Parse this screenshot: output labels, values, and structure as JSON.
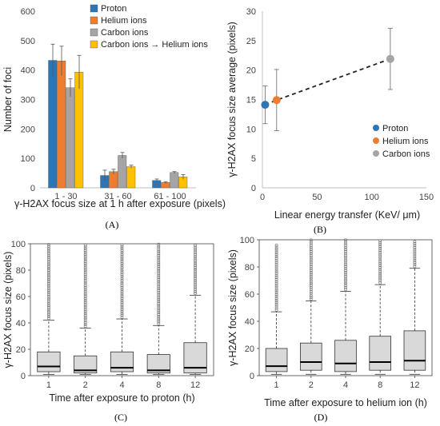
{
  "chart_data": [
    {
      "panel": "(A)",
      "type": "bar",
      "categories": [
        "1 - 30",
        "31 - 60",
        "61 - 100"
      ],
      "series": [
        {
          "name": "Proton",
          "color": "#2e75b6",
          "values": [
            433,
            42,
            25
          ],
          "errors": [
            55,
            18,
            5
          ]
        },
        {
          "name": "Helium ions",
          "color": "#ed7d31",
          "values": [
            431,
            55,
            18
          ],
          "errors": [
            50,
            8,
            3
          ]
        },
        {
          "name": "Carbon ions",
          "color": "#a5a5a5",
          "values": [
            340,
            110,
            52
          ],
          "errors": [
            30,
            10,
            3
          ]
        },
        {
          "name": "Carbon ions → Helium ions",
          "color": "#ffc000",
          "values": [
            393,
            72,
            37
          ],
          "errors": [
            57,
            5,
            8
          ]
        }
      ],
      "xlabel": "γ-H2AX focus size at 1 h after exposure (pixels)",
      "ylabel": "Number of foci",
      "yticks": [
        "0",
        "100",
        "200",
        "300",
        "400",
        "500",
        "600"
      ],
      "ylim": [
        0,
        600
      ],
      "legend": "top-right"
    },
    {
      "panel": "(B)",
      "type": "scatter",
      "series": [
        {
          "name": "Proton",
          "color": "#2e75b6",
          "x": 2.5,
          "y": 14.1,
          "err": 3.2
        },
        {
          "name": "Helium ions",
          "color": "#ed7d31",
          "x": 13,
          "y": 14.9,
          "err": 5.2
        },
        {
          "name": "Carbon ions",
          "color": "#a5a5a5",
          "x": 117,
          "y": 21.9,
          "err": 5.2
        }
      ],
      "trendline": "dashed",
      "xlabel": "Linear energy transfer (KeV/ μm)",
      "ylabel": "γ-H2AX focus size average (pixels)",
      "xticks": [
        "0",
        "50",
        "100",
        "150"
      ],
      "yticks": [
        "0",
        "5",
        "10",
        "15",
        "20",
        "25",
        "30"
      ],
      "xlim": [
        0,
        150
      ],
      "ylim": [
        0,
        30
      ],
      "legend": "bottom-right"
    },
    {
      "panel": "(C)",
      "type": "boxplot",
      "categories": [
        "1",
        "2",
        "4",
        "8",
        "12"
      ],
      "boxes": [
        {
          "min": 1,
          "q1": 3,
          "median": 7,
          "q3": 18,
          "whisker": 42,
          "outlier_max": 100
        },
        {
          "min": 1,
          "q1": 2,
          "median": 4,
          "q3": 15,
          "whisker": 36,
          "outlier_max": 100
        },
        {
          "min": 1,
          "q1": 3,
          "median": 6,
          "q3": 18,
          "whisker": 43,
          "outlier_max": 100
        },
        {
          "min": 1,
          "q1": 2,
          "median": 4,
          "q3": 16,
          "whisker": 38,
          "outlier_max": 100
        },
        {
          "min": 1,
          "q1": 2,
          "median": 6,
          "q3": 25,
          "whisker": 61,
          "outlier_max": 100
        }
      ],
      "xlabel": "Time after exposure to proton (h)",
      "ylabel": "γ-H2AX focus size (pixels)",
      "yticks": [
        "0",
        "20",
        "40",
        "60",
        "80",
        "100"
      ],
      "ylim": [
        0,
        100
      ]
    },
    {
      "panel": "(D)",
      "type": "boxplot",
      "categories": [
        "1",
        "2",
        "4",
        "8",
        "12"
      ],
      "boxes": [
        {
          "min": 1,
          "q1": 3,
          "median": 7,
          "q3": 20,
          "whisker": 47,
          "outlier_max": 97
        },
        {
          "min": 1,
          "q1": 4,
          "median": 10,
          "q3": 24,
          "whisker": 55,
          "outlier_max": 100
        },
        {
          "min": 1,
          "q1": 3,
          "median": 9,
          "q3": 26,
          "whisker": 62,
          "outlier_max": 100
        },
        {
          "min": 1,
          "q1": 4,
          "median": 10,
          "q3": 29,
          "whisker": 67,
          "outlier_max": 100
        },
        {
          "min": 1,
          "q1": 4,
          "median": 11,
          "q3": 33,
          "whisker": 79,
          "outlier_max": 100
        }
      ],
      "xlabel": "Time after exposure to helium ion (h)",
      "ylabel": "γ-H2AX focus size (pixels)",
      "yticks": [
        "0",
        "20",
        "40",
        "60",
        "80",
        "100"
      ],
      "ylim": [
        0,
        100
      ]
    }
  ]
}
